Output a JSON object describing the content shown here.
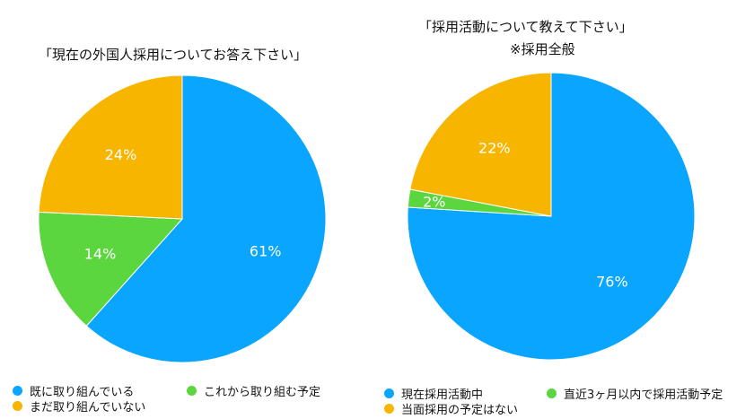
{
  "chart_data": [
    {
      "type": "pie",
      "title": "「現在の外国人採用についてお答え下さい」",
      "categories": [
        "既に取り組んでいる",
        "これから取り組む予定",
        "まだ取り組んでいない"
      ],
      "values": [
        61,
        14,
        24
      ],
      "labels": [
        "61%",
        "14%",
        "24%"
      ],
      "colors": [
        "#0aa5ff",
        "#5bd63f",
        "#f7b500"
      ],
      "legend": "bottom"
    },
    {
      "type": "pie",
      "title": "「採用活動について教えて下さい」",
      "subtitle": "※採用全般",
      "categories": [
        "現在採用活動中",
        "直近3ヶ月以内で採用活動予定",
        "当面採用の予定はない"
      ],
      "values": [
        76,
        2,
        22
      ],
      "labels": [
        "76%",
        "2%",
        "22%"
      ],
      "colors": [
        "#0aa5ff",
        "#5bd63f",
        "#f7b500"
      ],
      "legend": "bottom"
    }
  ]
}
